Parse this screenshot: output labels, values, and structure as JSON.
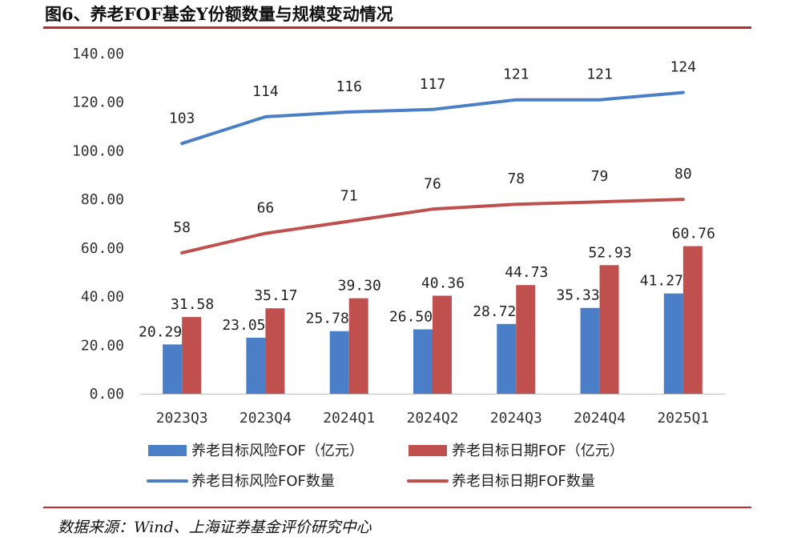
{
  "header": {
    "title": "图6、养老FOF基金Y份额数量与规模变动情况"
  },
  "footer": {
    "source": "数据来源：Wind、上海证券基金评价研究中心"
  },
  "colors": {
    "blue": "#4a7ec6",
    "red": "#c0504d",
    "rule": "#c0282d"
  },
  "chart_data": {
    "type": "bar",
    "categories": [
      "2023Q3",
      "2023Q4",
      "2024Q1",
      "2024Q2",
      "2024Q3",
      "2024Q4",
      "2025Q1"
    ],
    "ylim": [
      0,
      140
    ],
    "yticks": [
      "0.00",
      "20.00",
      "40.00",
      "60.00",
      "80.00",
      "100.00",
      "120.00",
      "140.00"
    ],
    "grid": false,
    "legend_position": "bottom",
    "series": [
      {
        "name": "养老目标风险FOF（亿元）",
        "type": "bar",
        "color": "#4a7ec6",
        "values": [
          20.29,
          23.05,
          25.78,
          26.5,
          28.72,
          35.33,
          41.27
        ],
        "labels": [
          "20.29",
          "23.05",
          "25.78",
          "26.50",
          "28.72",
          "35.33",
          "41.27"
        ]
      },
      {
        "name": "养老目标日期FOF（亿元）",
        "type": "bar",
        "color": "#c0504d",
        "values": [
          31.58,
          35.17,
          39.3,
          40.36,
          44.73,
          52.93,
          60.76
        ],
        "labels": [
          "31.58",
          "35.17",
          "39.30",
          "40.36",
          "44.73",
          "52.93",
          "60.76"
        ]
      },
      {
        "name": "养老目标风险FOF数量",
        "type": "line",
        "color": "#4a7ec6",
        "values": [
          103,
          114,
          116,
          117,
          121,
          121,
          124
        ],
        "labels": [
          "103",
          "114",
          "116",
          "117",
          "121",
          "121",
          "124"
        ]
      },
      {
        "name": "养老目标日期FOF数量",
        "type": "line",
        "color": "#c0504d",
        "values": [
          58,
          66,
          71,
          76,
          78,
          79,
          80
        ],
        "labels": [
          "58",
          "66",
          "71",
          "76",
          "78",
          "79",
          "80"
        ]
      }
    ]
  }
}
